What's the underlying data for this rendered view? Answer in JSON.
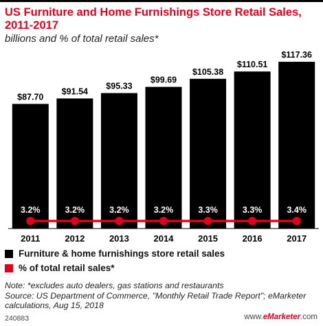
{
  "title": "US Furniture and Home Furnishings Store Retail Sales, 2011-2017",
  "subtitle": "billions and % of total retail sales*",
  "legend": [
    {
      "label": "Furniture & home furnishings store retail sales",
      "color": "#000000"
    },
    {
      "label": "% of total retail sales*",
      "color": "#e2001a"
    }
  ],
  "note": "Note: *excludes auto dealers, gas stations and restaurants\nSource: US Department of Commerce, \"Monthly Retail Trade Report\"; eMarketer calculations, Aug 15, 2018",
  "footer": {
    "id": "240883",
    "brand_prefix": "www.",
    "brand": "eMarketer",
    "brand_suffix": ".com"
  },
  "chart_data": {
    "type": "bar",
    "categories": [
      "2011",
      "2012",
      "2013",
      "2014",
      "2015",
      "2016",
      "2017"
    ],
    "series": [
      {
        "name": "Furniture & home furnishings store retail sales",
        "values": [
          87.7,
          91.54,
          95.33,
          99.69,
          105.38,
          110.51,
          117.36
        ],
        "labels": [
          "$87.70",
          "$91.54",
          "$95.33",
          "$99.69",
          "$105.38",
          "$110.51",
          "$117.36"
        ],
        "color": "#000000"
      },
      {
        "name": "% of total retail sales*",
        "type": "line",
        "values": [
          3.2,
          3.2,
          3.2,
          3.2,
          3.3,
          3.3,
          3.4
        ],
        "labels": [
          "3.2%",
          "3.2%",
          "3.2%",
          "3.2%",
          "3.3%",
          "3.3%",
          "3.4%"
        ],
        "color": "#e2001a"
      }
    ],
    "ylim": [
      0,
      120
    ]
  }
}
